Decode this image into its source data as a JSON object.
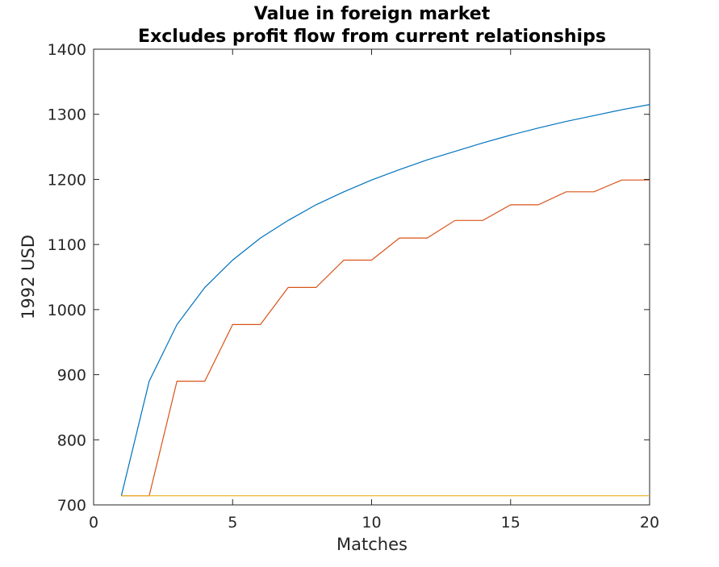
{
  "chart_data": {
    "type": "line",
    "title": "Value in foreign market",
    "subtitle": "Excludes profit flow from current relationships",
    "xlabel": "Matches",
    "ylabel": "1992 USD",
    "xlim": [
      0,
      20
    ],
    "ylim": [
      700,
      1400
    ],
    "xticks": [
      0,
      5,
      10,
      15,
      20
    ],
    "yticks": [
      700,
      800,
      900,
      1000,
      1100,
      1200,
      1300,
      1400
    ],
    "grid": false,
    "legend": "none",
    "series": [
      {
        "color": "#0072BD",
        "x": [
          1,
          2,
          3,
          4,
          5,
          6,
          7,
          8,
          9,
          10,
          11,
          12,
          13,
          14,
          15,
          16,
          17,
          18,
          19,
          20
        ],
        "y": [
          714,
          890,
          977,
          1034,
          1076,
          1110,
          1137,
          1161,
          1181,
          1199,
          1215,
          1230,
          1243,
          1256,
          1268,
          1279,
          1289,
          1298,
          1307,
          1315
        ]
      },
      {
        "color": "#D95319",
        "x": [
          1,
          2,
          2,
          3,
          4,
          4,
          5,
          6,
          6,
          7,
          8,
          8,
          9,
          10,
          10,
          11,
          12,
          12,
          13,
          14,
          14,
          15,
          16,
          16,
          17,
          18,
          18,
          19,
          20
        ],
        "y": [
          714,
          714,
          714,
          890,
          890,
          890,
          977,
          977,
          977,
          1034,
          1034,
          1034,
          1076,
          1076,
          1076,
          1110,
          1110,
          1110,
          1137,
          1137,
          1137,
          1161,
          1161,
          1161,
          1181,
          1181,
          1181,
          1199,
          1199
        ]
      },
      {
        "color": "#EDB120",
        "x": [
          1,
          20
        ],
        "y": [
          714,
          714
        ]
      }
    ]
  }
}
